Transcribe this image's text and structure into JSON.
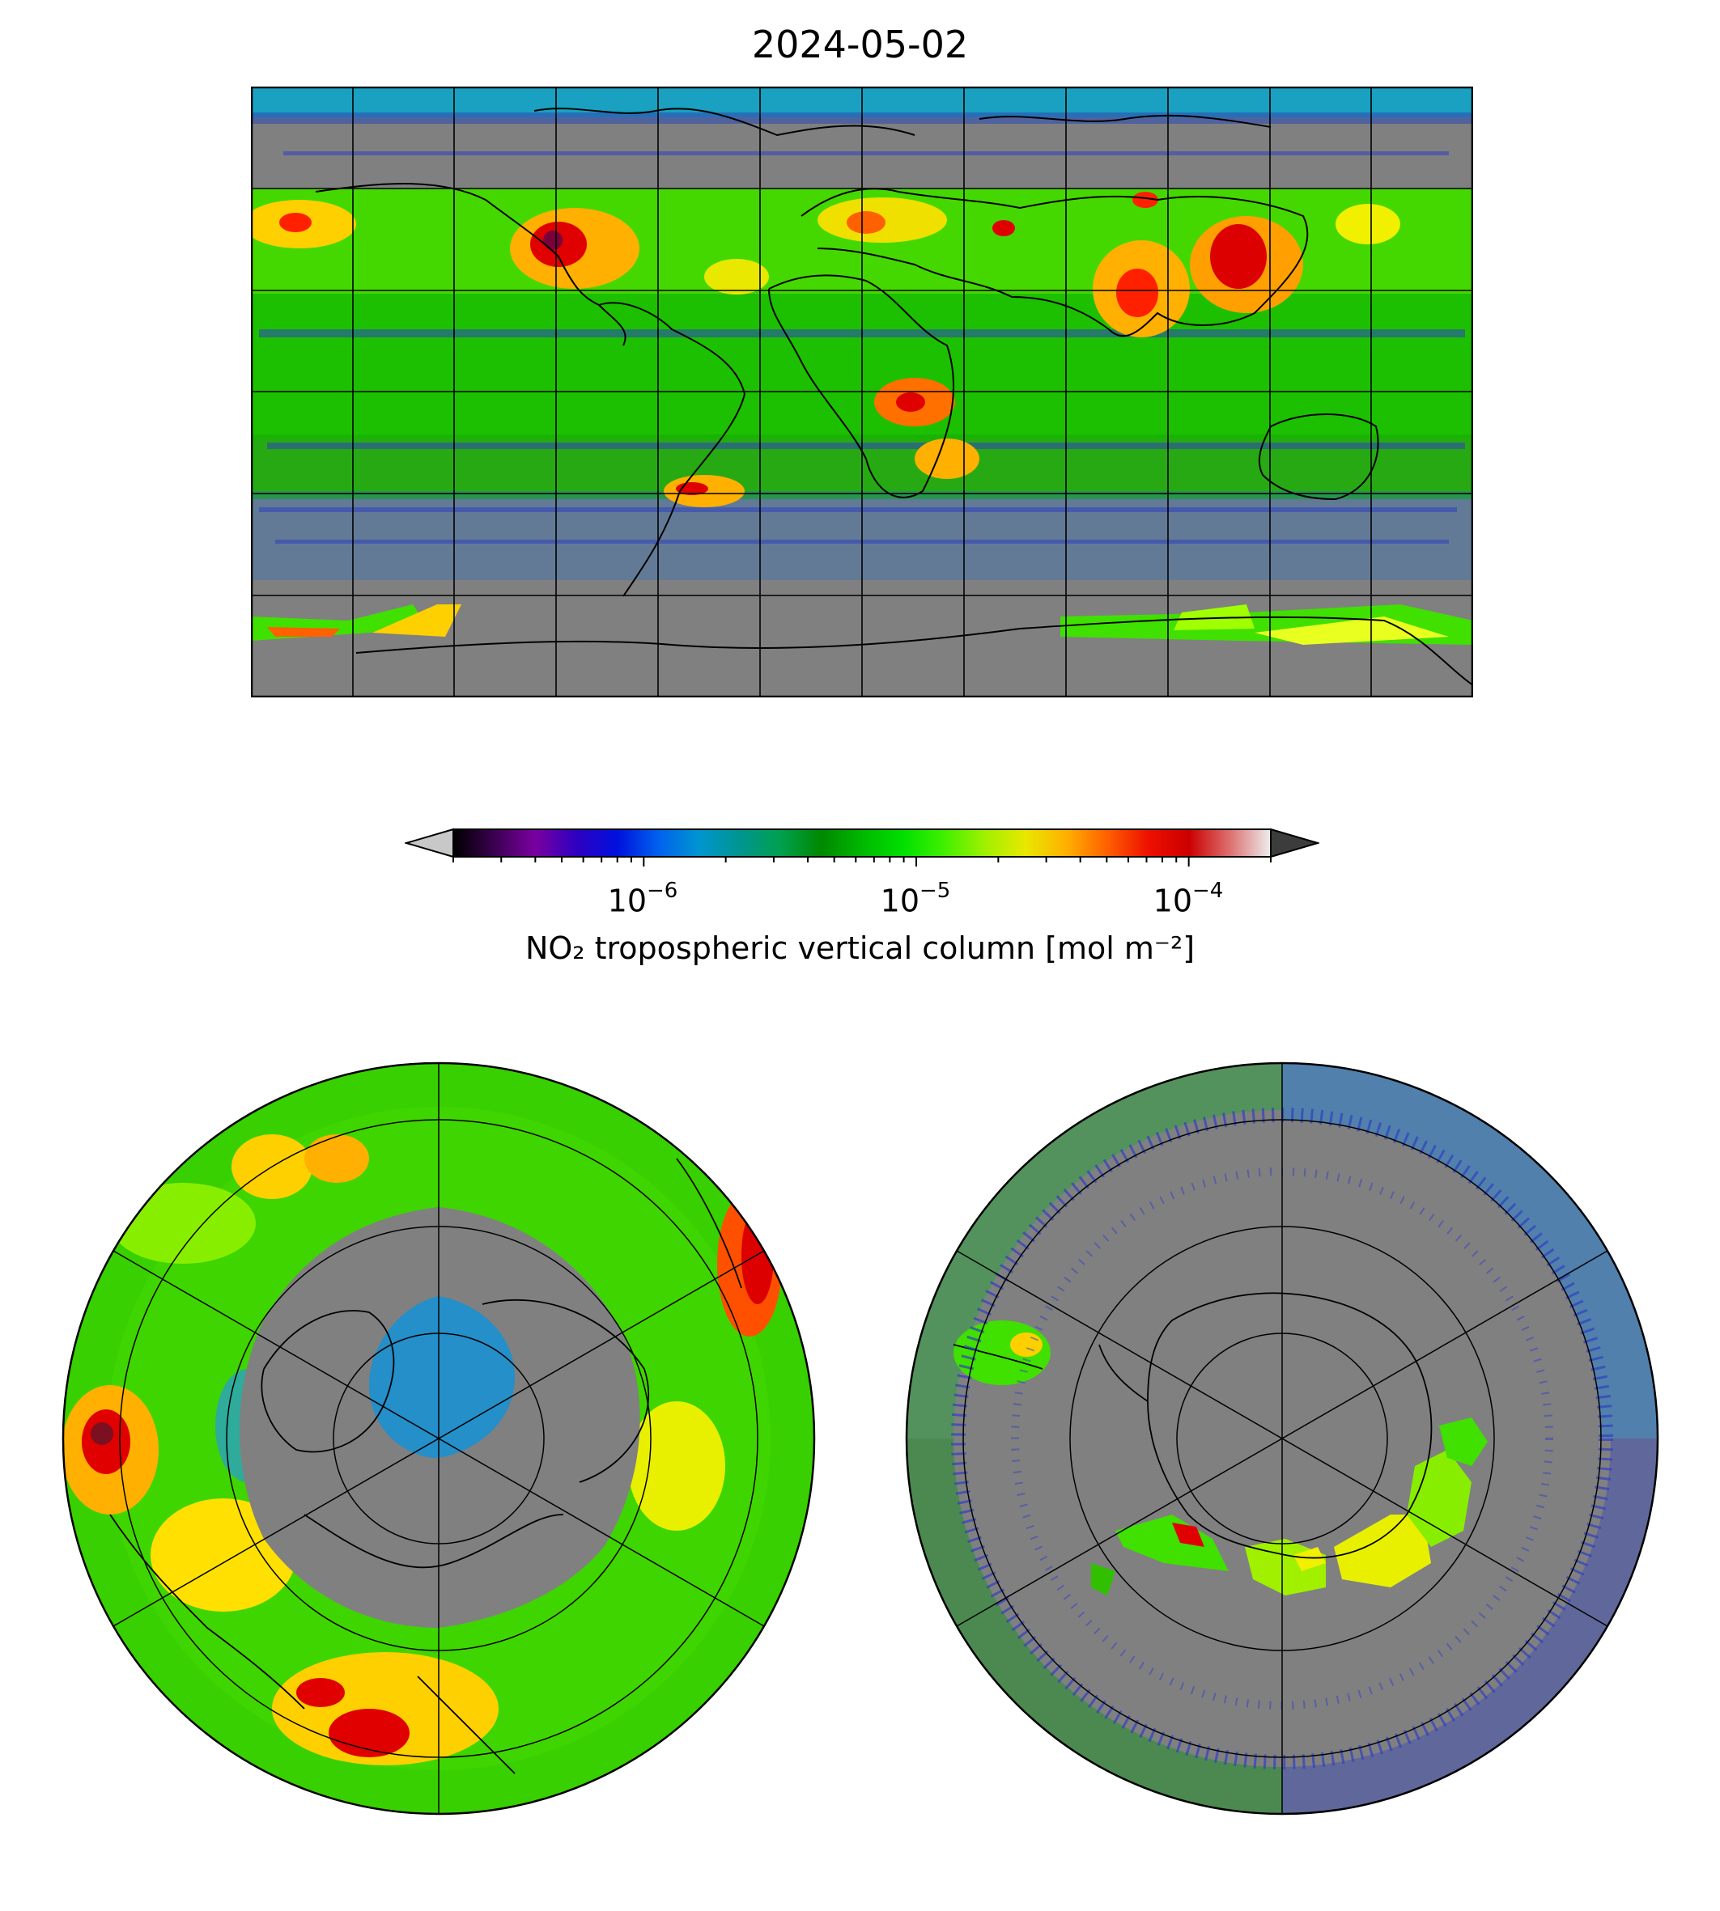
{
  "title": "2024-05-02",
  "colorbar": {
    "label": "NO₂ tropospheric vertical column [mol m⁻²]",
    "scale": "log",
    "range": [
      2e-07,
      0.0002
    ],
    "extend": "both",
    "ticks": [
      {
        "base": "10",
        "exponent": "−6",
        "value": 1e-06
      },
      {
        "base": "10",
        "exponent": "−5",
        "value": 1e-05
      },
      {
        "base": "10",
        "exponent": "−4",
        "value": 0.0001
      }
    ],
    "colormap": [
      "#000000",
      "#3a0050",
      "#7a00a0",
      "#3000c0",
      "#0010dd",
      "#0060ee",
      "#0095d0",
      "#009590",
      "#00a050",
      "#008800",
      "#00b800",
      "#00e000",
      "#40f000",
      "#a0f000",
      "#e8e800",
      "#ffb000",
      "#ff6000",
      "#ee1000",
      "#cc0000",
      "#dd7070",
      "#eeeeee"
    ],
    "under_color": "#c8c8c8",
    "over_color": "#3c3c3c"
  },
  "maps": {
    "world": {
      "projection": "equirectangular",
      "lon_range": [
        -180,
        180
      ],
      "lat_range": [
        -90,
        90
      ],
      "gridlines": true
    },
    "north_polar": {
      "projection": "north polar stereographic",
      "gridlines": true
    },
    "south_polar": {
      "projection": "south polar stereographic",
      "gridlines": true
    },
    "missing_data_color": "#808080",
    "coastline_color": "#000000"
  }
}
